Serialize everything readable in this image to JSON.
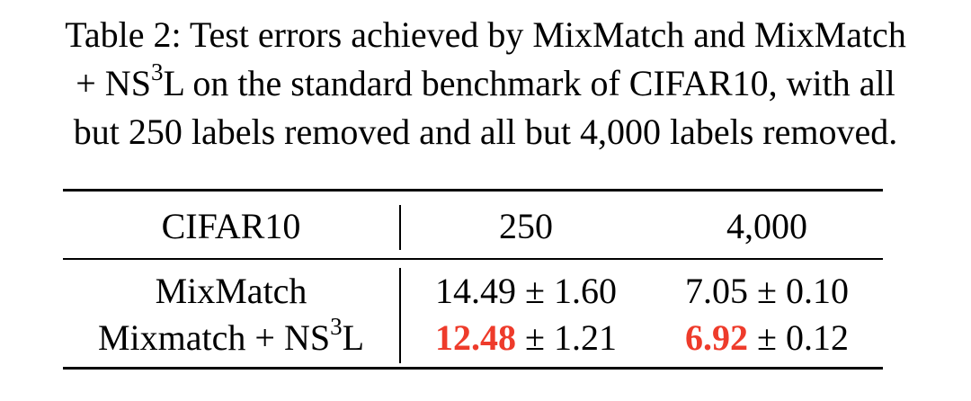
{
  "caption": {
    "line1": "Table 2: Test errors achieved by MixMatch and MixMatch",
    "line2_pre": "+ NS",
    "line2_sup": "3",
    "line2_post": "L on the standard benchmark of CIFAR10, with all",
    "line3": "but 250 labels removed and all but 4,000 labels removed."
  },
  "table": {
    "headers": [
      "CIFAR10",
      "250",
      "4,000"
    ],
    "rows": [
      {
        "method": "MixMatch",
        "method_sup": "",
        "method_suffix": "",
        "c250_best": "",
        "c250_rest": "14.49 ± 1.60",
        "c4000_best": "",
        "c4000_rest": "7.05 ± 0.10"
      },
      {
        "method": "Mixmatch + NS",
        "method_sup": "3",
        "method_suffix": "L",
        "c250_best": "12.48",
        "c250_rest": " ± 1.21",
        "c4000_best": "6.92",
        "c4000_rest": " ± 0.12"
      }
    ]
  },
  "colors": {
    "highlight": "#ee3b2b"
  }
}
